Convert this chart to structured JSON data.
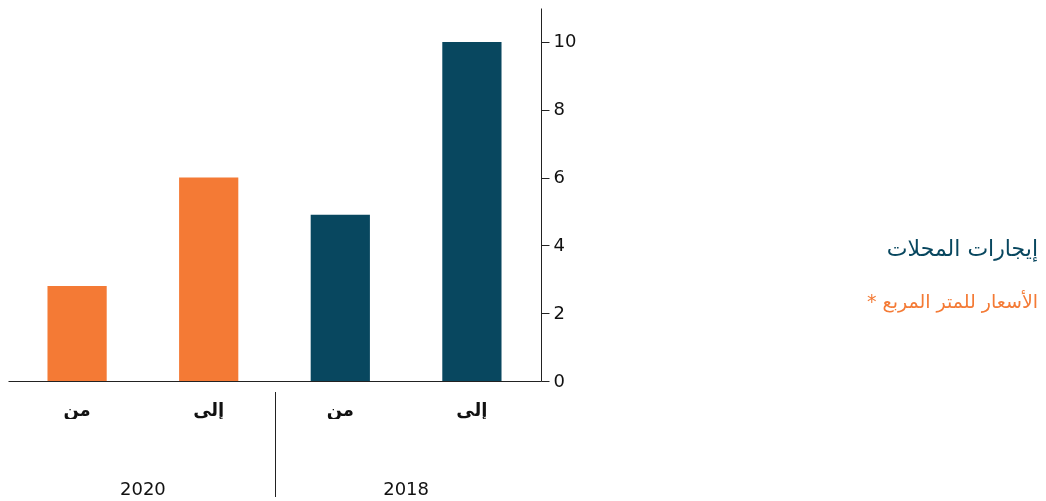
{
  "chart_data": {
    "type": "bar",
    "title": "إيجارات المحلات",
    "subtitle": "الأسعار للمتر المربع *",
    "categories": [
      "من",
      "إلى",
      "من",
      "إلى"
    ],
    "series": [
      {
        "color": "#f47a35",
        "values": [
          2.8,
          6,
          null,
          null
        ]
      },
      {
        "color": "#08475f",
        "values": [
          null,
          null,
          4.9,
          10
        ]
      }
    ],
    "annotations": [
      "2020",
      "2018"
    ],
    "ylim": [
      0,
      11
    ],
    "yticks": [
      0,
      2,
      4,
      6,
      8,
      10
    ],
    "grid": false,
    "legend": false
  }
}
